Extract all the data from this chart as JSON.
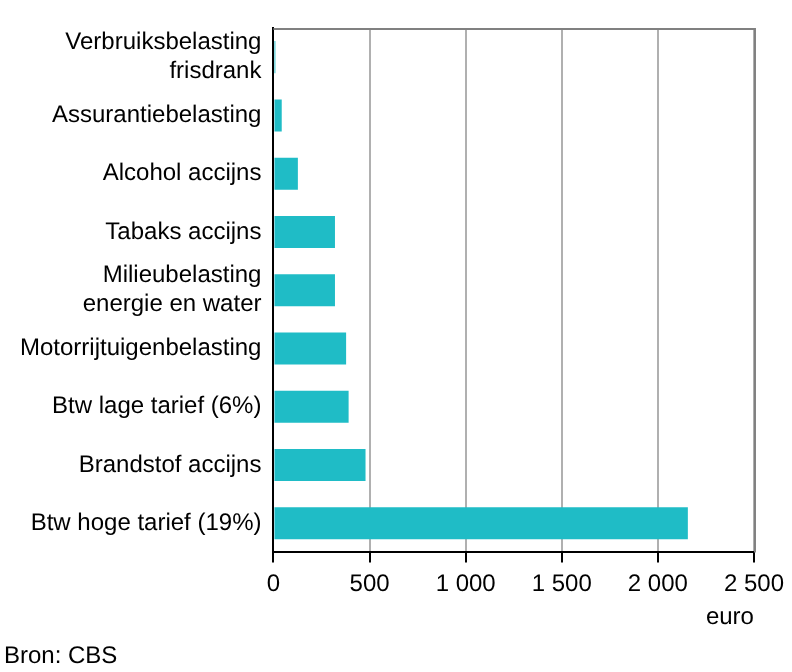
{
  "chart_data": {
    "type": "bar",
    "orientation": "horizontal",
    "categories": [
      "Verbruiksbelasting\nfrisdrank",
      "Assurantiebelasting",
      "Alcohol accijns",
      "Tabaks accijns",
      "Milieubelasting\nenergie en water",
      "Motorrijtuigenbelasting",
      "Btw lage tarief (6%)",
      "Brandstof accijns",
      "Btw hoge tarief (19%)"
    ],
    "values": [
      10,
      43,
      127,
      320,
      320,
      378,
      391,
      479,
      2156
    ],
    "color": "#1fbcc6",
    "xlim": [
      0,
      2500
    ],
    "xticks": [
      0,
      500,
      {
        "value": 1000,
        "label": "1 000"
      },
      {
        "value": 1500,
        "label": "1 500"
      },
      {
        "value": 2000,
        "label": "2 000"
      },
      {
        "value": 2500,
        "label": "2 500"
      }
    ],
    "xlabel": "euro",
    "grid": "x",
    "annotations": [
      "Bron: CBS"
    ]
  }
}
